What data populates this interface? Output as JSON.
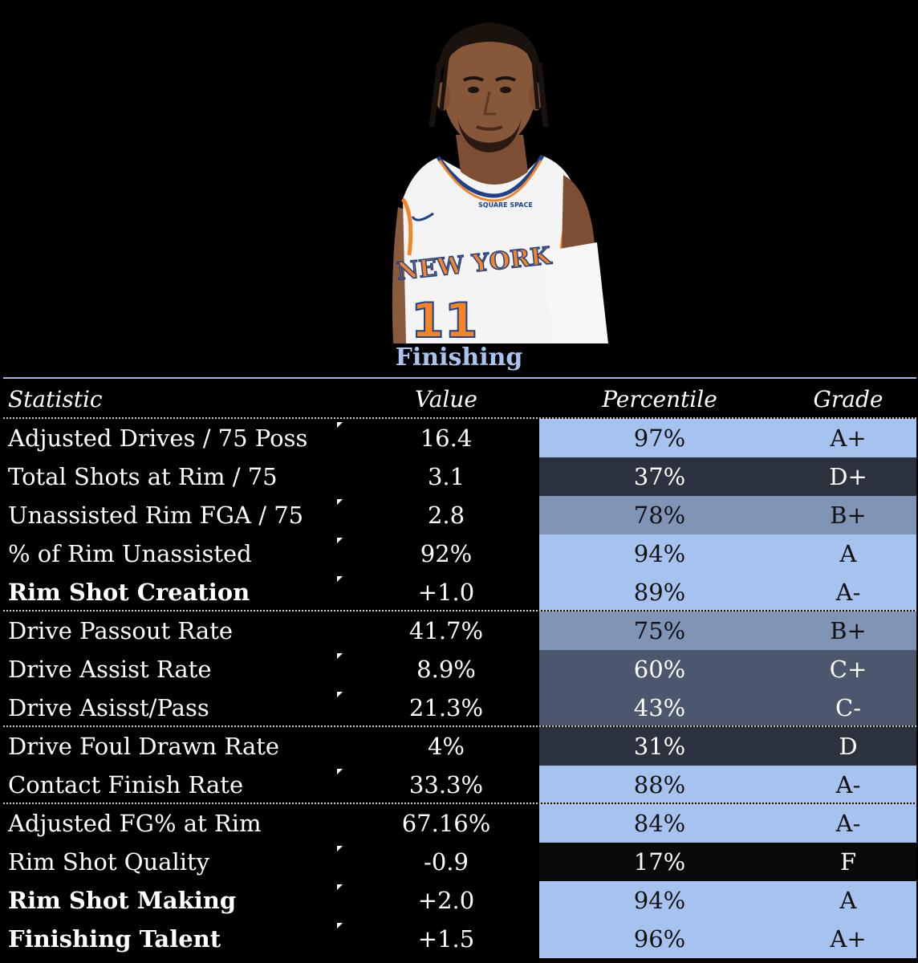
{
  "section_title": "Finishing",
  "columns": {
    "statistic": "Statistic",
    "value": "Value",
    "percentile": "Percentile",
    "grade": "Grade"
  },
  "rows": [
    {
      "name": "Adjusted Drives / 75 Poss",
      "value": "16.4",
      "percentile": "97%",
      "grade": "A+",
      "bold": false
    },
    {
      "name": "Total Shots at Rim / 75",
      "value": "3.1",
      "percentile": "37%",
      "grade": "D+",
      "bold": false
    },
    {
      "name": "Unassisted Rim FGA / 75",
      "value": "2.8",
      "percentile": "78%",
      "grade": "B+",
      "bold": false
    },
    {
      "name": "% of Rim Unassisted",
      "value": "92%",
      "percentile": "94%",
      "grade": "A",
      "bold": false
    },
    {
      "name": "Rim Shot Creation",
      "value": "+1.0",
      "percentile": "89%",
      "grade": "A-",
      "bold": true
    },
    {
      "name": "Drive Passout Rate",
      "value": "41.7%",
      "percentile": "75%",
      "grade": "B+",
      "bold": false
    },
    {
      "name": "Drive Assist Rate",
      "value": "8.9%",
      "percentile": "60%",
      "grade": "C+",
      "bold": false
    },
    {
      "name": "Drive Asisst/Pass",
      "value": "21.3%",
      "percentile": "43%",
      "grade": "C-",
      "bold": false
    },
    {
      "name": "Drive Foul Drawn Rate",
      "value": "4%",
      "percentile": "31%",
      "grade": "D",
      "bold": false
    },
    {
      "name": "Contact Finish Rate",
      "value": "33.3%",
      "percentile": "88%",
      "grade": "A-",
      "bold": false
    },
    {
      "name": "Adjusted FG% at Rim",
      "value": "67.16%",
      "percentile": "84%",
      "grade": "A-",
      "bold": false
    },
    {
      "name": "Rim Shot Quality",
      "value": "-0.9",
      "percentile": "17%",
      "grade": "F",
      "bold": false
    },
    {
      "name": "Rim Shot Making",
      "value": "+2.0",
      "percentile": "94%",
      "grade": "A",
      "bold": true
    },
    {
      "name": "Finishing Talent",
      "value": "+1.5",
      "percentile": "96%",
      "grade": "A+",
      "bold": true
    }
  ],
  "player_photo": {
    "jersey_team": "NEW YORK",
    "jersey_number": "11",
    "jersey_sponsor": "SQUARE SPACE"
  },
  "colors": {
    "title": "#a9c3ec",
    "tier_high": "#a5c3ee",
    "tier_mid_high": "#8094b6",
    "tier_mid": "#4c576d",
    "tier_low": "#2b313d",
    "tier_lowest": "#0a0a0a",
    "knicks_orange": "#f58426",
    "knicks_blue": "#1d428a"
  }
}
